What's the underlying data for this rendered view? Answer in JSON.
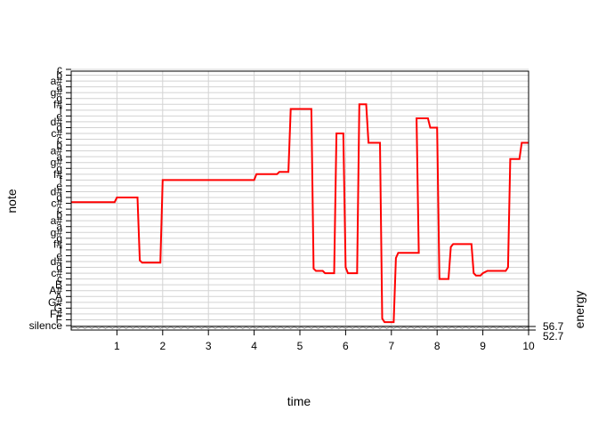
{
  "chart_data": {
    "type": "line",
    "title": "",
    "xlabel": "time",
    "ylabel": "note",
    "y2label": "energy",
    "xlim": [
      0,
      10
    ],
    "x_ticks": [
      1,
      2,
      3,
      4,
      5,
      6,
      7,
      8,
      9,
      10
    ],
    "x_tick_labels": [
      "1",
      "2",
      "3",
      "4",
      "5",
      "6",
      "7",
      "8",
      "9",
      "10"
    ],
    "y_note_labels": [
      "silence",
      "F",
      "F#",
      "G",
      "G#",
      "A",
      "A#",
      "B",
      "c",
      "c#",
      "d",
      "d#",
      "e",
      "f",
      "f#",
      "g",
      "g#",
      "a",
      "a#",
      "b",
      "c'",
      "c#'",
      "d'",
      "d#'",
      "e'",
      "f'",
      "f#'",
      "g'",
      "g#'",
      "a'",
      "a#'",
      "b'",
      "c''",
      "c#''",
      "d''",
      "d#''",
      "e''",
      "f''",
      "f#''",
      "g''",
      "g#''",
      "a''",
      "a#''",
      "b''",
      "c'''"
    ],
    "y_note_display": [
      "silence",
      "F",
      "F#",
      "G",
      "G#",
      "A",
      "A#",
      "B",
      "c",
      "c#",
      "d",
      "d#",
      "e",
      "f",
      "f#",
      "g",
      "g#",
      "a",
      "a#",
      "b",
      "c",
      "c#",
      "d",
      "d#",
      "e",
      "f",
      "f#",
      "g",
      "g#",
      "a",
      "a#",
      "b",
      "c",
      "c#",
      "d",
      "d#",
      "e",
      "f",
      "f#",
      "g",
      "g#",
      "a",
      "a#",
      "b",
      "c"
    ],
    "y2_ticks": [
      56.7,
      52.7
    ],
    "grid": true,
    "series": [
      {
        "color": "#ff0000",
        "points": [
          [
            0.0,
            21.2
          ],
          [
            0.95,
            21.2
          ],
          [
            1.0,
            22.0
          ],
          [
            1.45,
            22.0
          ],
          [
            1.5,
            11.2
          ],
          [
            1.55,
            10.8
          ],
          [
            1.95,
            10.8
          ],
          [
            2.0,
            25.0
          ],
          [
            4.0,
            25.0
          ],
          [
            4.05,
            26.0
          ],
          [
            4.5,
            26.0
          ],
          [
            4.55,
            26.4
          ],
          [
            4.75,
            26.4
          ],
          [
            4.8,
            37.2
          ],
          [
            5.25,
            37.2
          ],
          [
            5.3,
            9.8
          ],
          [
            5.35,
            9.4
          ],
          [
            5.5,
            9.4
          ],
          [
            5.55,
            9.0
          ],
          [
            5.75,
            9.0
          ],
          [
            5.8,
            33.0
          ],
          [
            5.95,
            33.0
          ],
          [
            6.0,
            10.0
          ],
          [
            6.05,
            9.0
          ],
          [
            6.25,
            9.0
          ],
          [
            6.3,
            38.0
          ],
          [
            6.45,
            38.0
          ],
          [
            6.5,
            31.4
          ],
          [
            6.75,
            31.4
          ],
          [
            6.8,
            1.2
          ],
          [
            6.85,
            0.6
          ],
          [
            7.05,
            0.6
          ],
          [
            7.1,
            11.6
          ],
          [
            7.15,
            12.5
          ],
          [
            7.6,
            12.5
          ],
          [
            7.55,
            35.6
          ],
          [
            7.8,
            35.6
          ],
          [
            7.85,
            34.0
          ],
          [
            8.0,
            34.0
          ],
          [
            8.05,
            8.0
          ],
          [
            8.25,
            8.0
          ],
          [
            8.3,
            13.5
          ],
          [
            8.35,
            14.0
          ],
          [
            8.75,
            14.0
          ],
          [
            8.8,
            9.0
          ],
          [
            8.85,
            8.6
          ],
          [
            8.95,
            8.6
          ],
          [
            9.0,
            9.0
          ],
          [
            9.1,
            9.4
          ],
          [
            9.5,
            9.4
          ],
          [
            9.55,
            10.0
          ],
          [
            9.6,
            28.6
          ],
          [
            9.8,
            28.6
          ],
          [
            9.85,
            31.4
          ],
          [
            10.0,
            31.4
          ]
        ]
      }
    ]
  }
}
